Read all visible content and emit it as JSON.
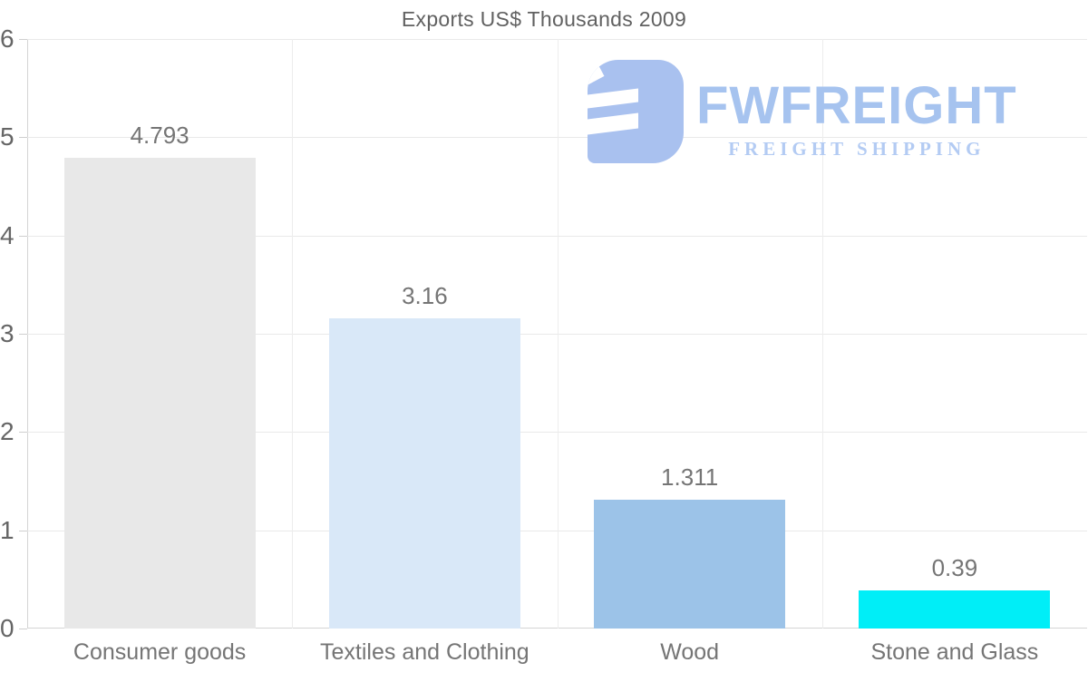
{
  "title": "Exports US$ Thousands 2009",
  "logo": {
    "name": "FWFREIGHT",
    "tagline": "FREIGHT SHIPPING",
    "name_color": "#a6c3ef",
    "tagline_color": "#b3cbf3",
    "mark_color": "#a9c1ef"
  },
  "chart_data": {
    "type": "bar",
    "title": "Exports US$ Thousands 2009",
    "categories": [
      "Consumer goods",
      "Textiles and Clothing",
      "Wood",
      "Stone and Glass"
    ],
    "values": [
      4.793,
      3.16,
      1.311,
      0.39
    ],
    "value_labels": [
      "4.793",
      "3.16",
      "1.311",
      "0.39"
    ],
    "bar_colors": [
      "#e8e8e8",
      "#d9e8f8",
      "#9cc3e8",
      "#00eef7"
    ],
    "xlabel": "",
    "ylabel": "",
    "ylim": [
      0,
      6
    ],
    "yticks": [
      0,
      1,
      2,
      3,
      4,
      5,
      6
    ],
    "grid": true,
    "legend": false,
    "axis_color": "#d4d4d4",
    "gridline_color": "#e9e9e9",
    "label_color": "#757575",
    "tick_label_color": "#666666"
  }
}
